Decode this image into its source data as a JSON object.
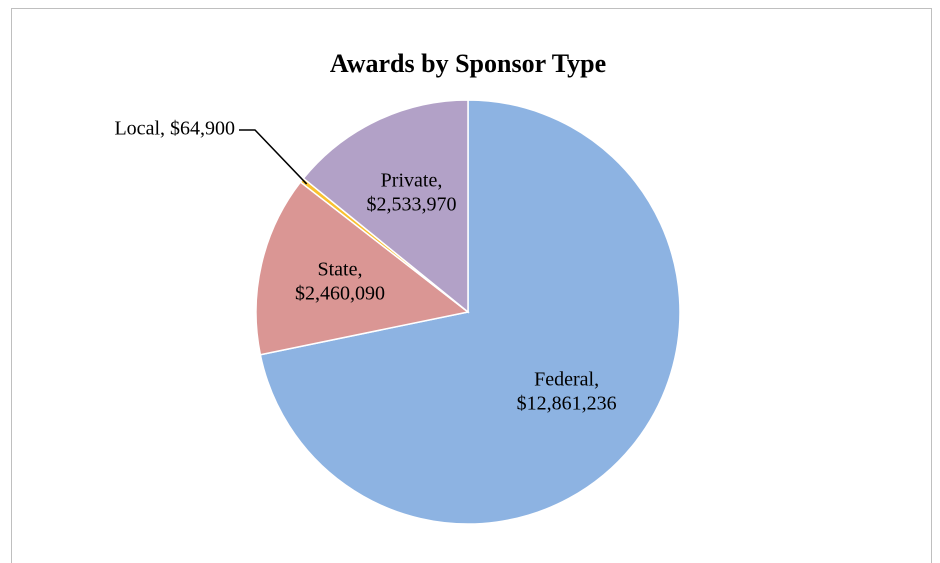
{
  "chart_data": {
    "type": "pie",
    "title": "Awards by Sponsor Type",
    "values": [
      12861236,
      2460090,
      64900,
      2533970
    ],
    "value_labels": [
      "Federal, $12,861,236",
      "State, $2,460,090",
      "Local, $64,900",
      "Private, $2,533,970"
    ],
    "colors": [
      "#8db3e2",
      "#da9694",
      "#f9c12f",
      "#b2a1c7"
    ]
  }
}
